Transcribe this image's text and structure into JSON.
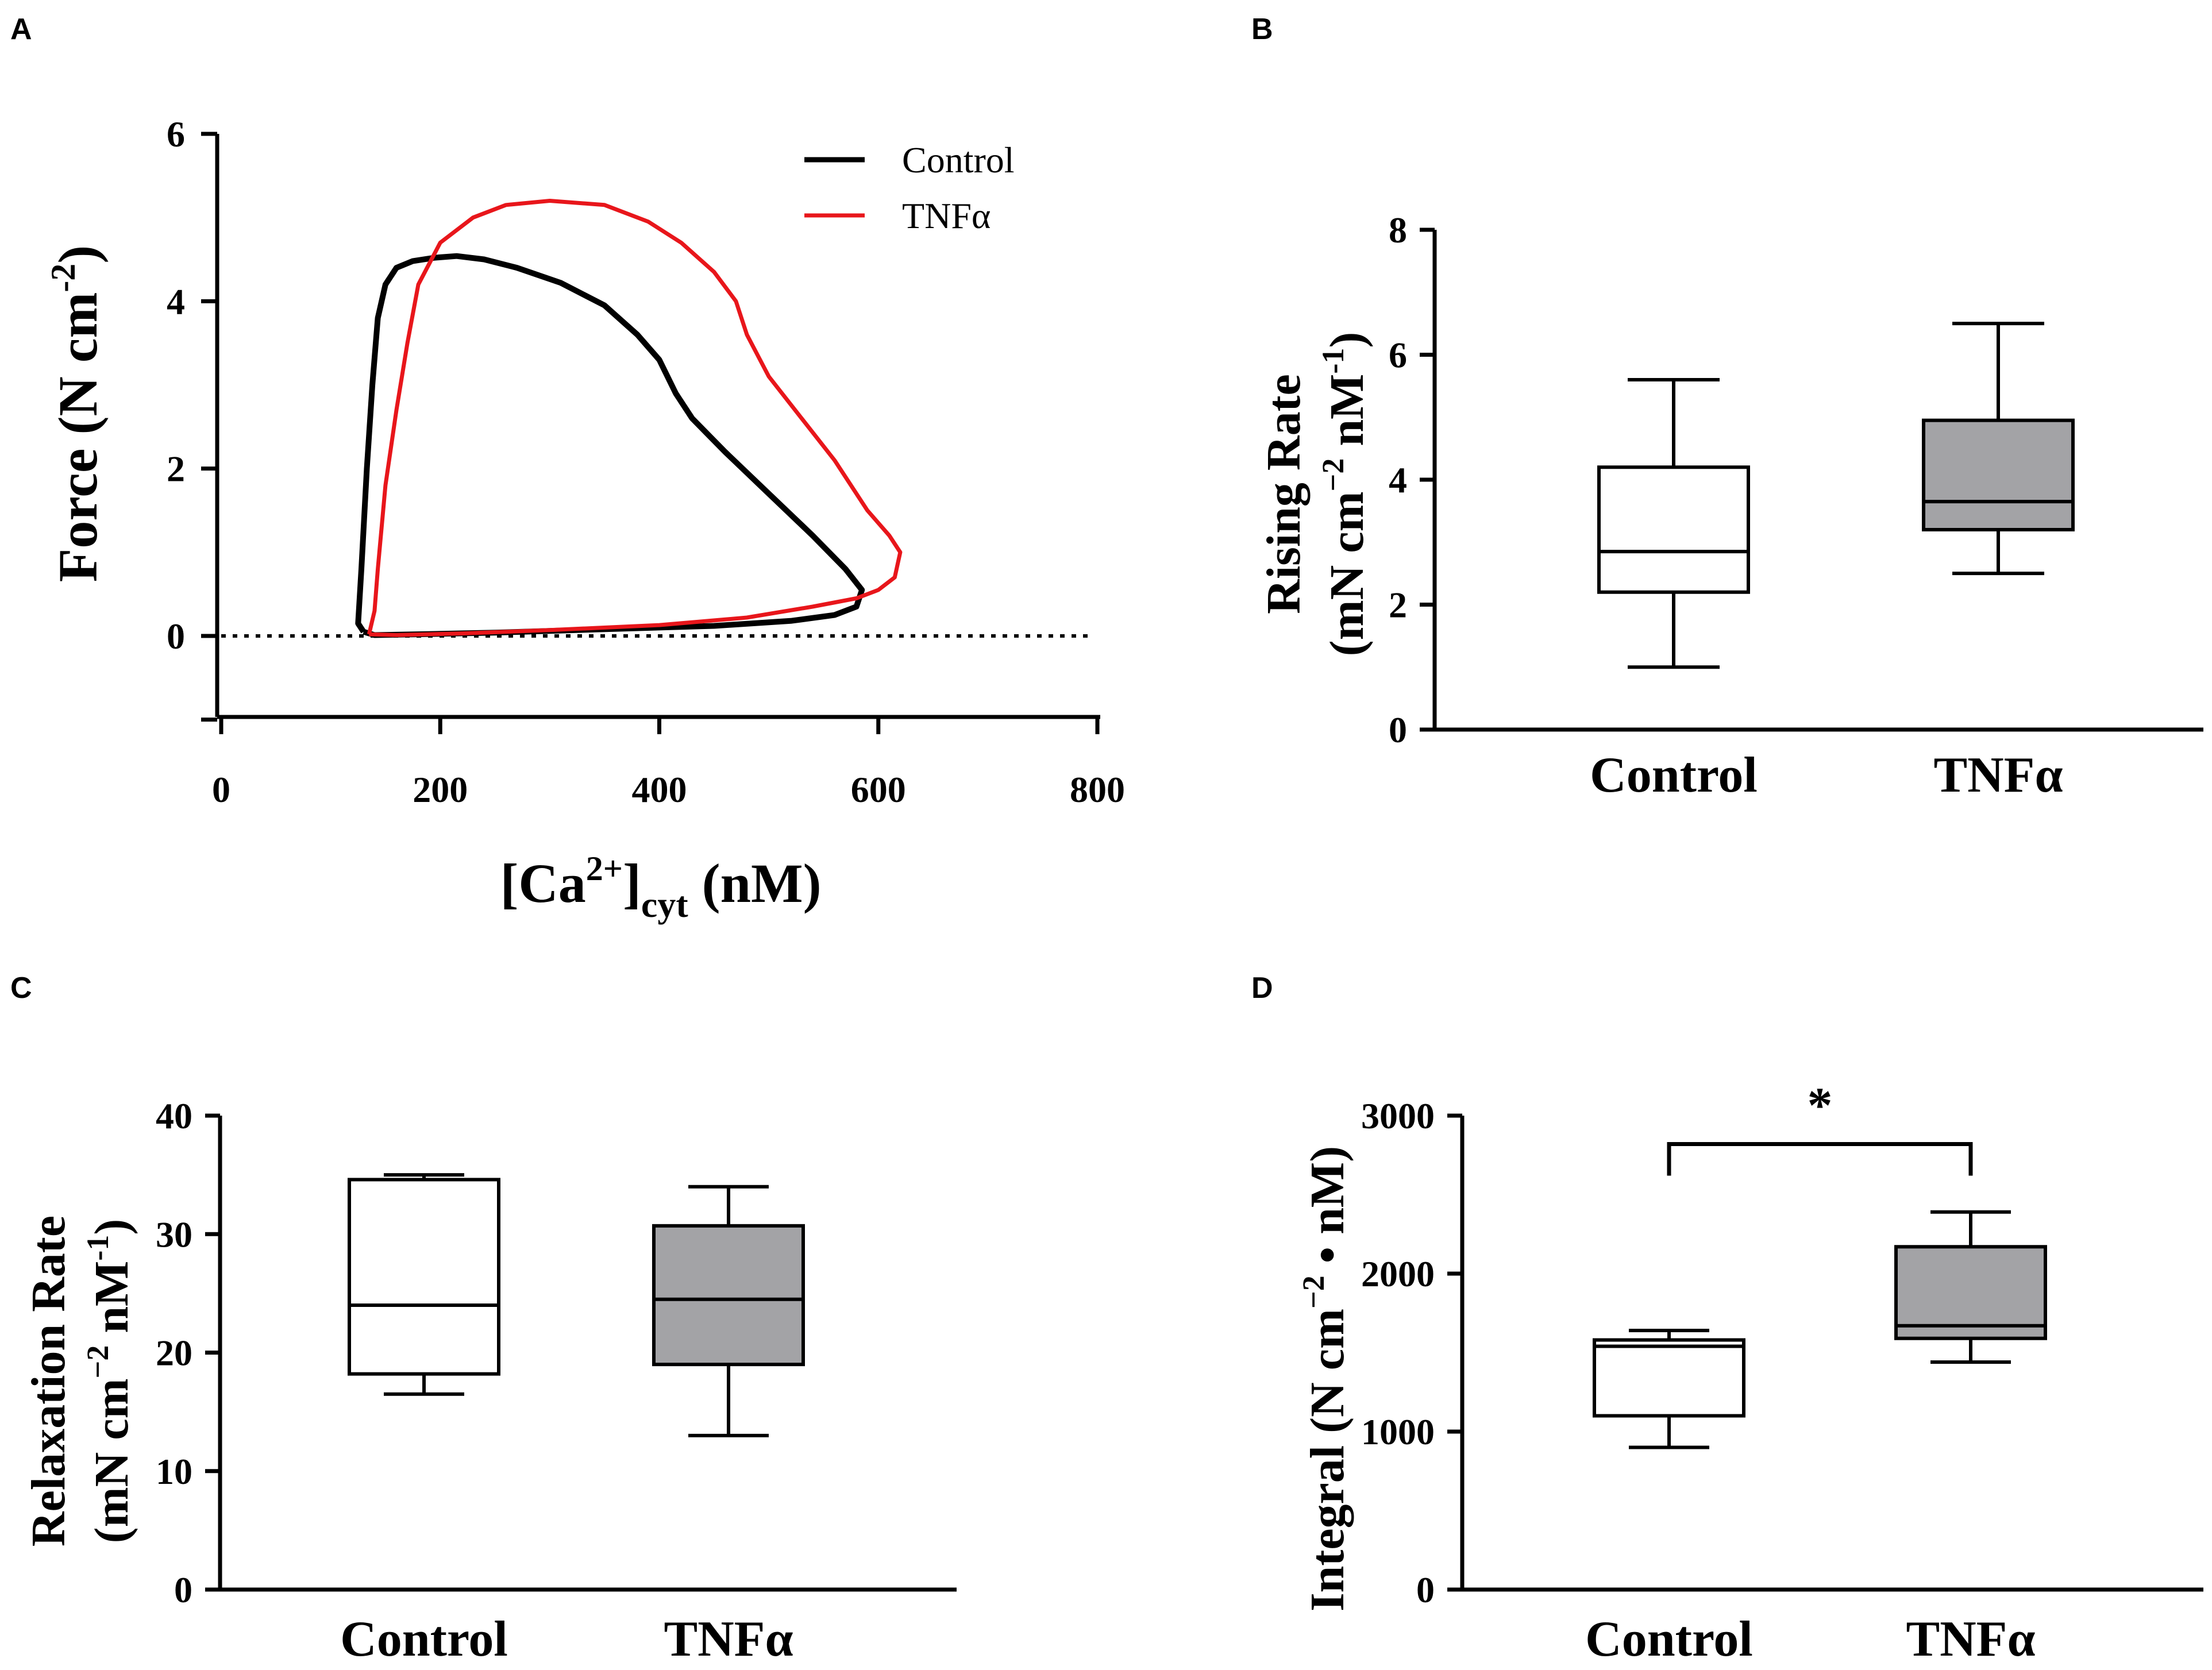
{
  "colors": {
    "control": "#000000",
    "tnf": "#e8161b",
    "tnf_box": "#a3a3a6",
    "control_box": "#ffffff"
  },
  "chart_data": [
    {
      "panel": "A",
      "type": "line",
      "xlabel_parts": {
        "base": "[Ca",
        "sup": "2+",
        "close": "]",
        "sub": "cyt",
        "unit": " (nM)"
      },
      "ylabel_parts": {
        "base": "Force (N cm",
        "sup": "-2",
        "close": ")"
      },
      "xlim": [
        0,
        800
      ],
      "ylim": [
        -1,
        6
      ],
      "xticks": [
        0,
        200,
        400,
        600,
        800
      ],
      "yticks": [
        0,
        2,
        4,
        6
      ],
      "reference_line_y": 0,
      "legend": [
        "Control",
        "TNFα"
      ],
      "series": [
        {
          "name": "Control",
          "x": [
            130,
            125,
            128,
            133,
            138,
            143,
            150,
            160,
            175,
            195,
            215,
            240,
            270,
            310,
            350,
            380,
            400,
            415,
            430,
            460,
            500,
            540,
            570,
            585,
            580,
            560,
            520,
            450,
            350,
            250,
            180,
            140,
            130
          ],
          "y": [
            0.05,
            0.15,
            0.8,
            2.0,
            3.0,
            3.8,
            4.2,
            4.4,
            4.48,
            4.52,
            4.54,
            4.5,
            4.4,
            4.22,
            3.95,
            3.6,
            3.3,
            2.9,
            2.6,
            2.2,
            1.7,
            1.2,
            0.8,
            0.55,
            0.35,
            0.25,
            0.18,
            0.12,
            0.08,
            0.04,
            0.02,
            0.01,
            0.05
          ]
        },
        {
          "name": "TNFα",
          "x": [
            135,
            140,
            143,
            150,
            160,
            170,
            180,
            200,
            230,
            260,
            300,
            350,
            390,
            420,
            450,
            470,
            480,
            500,
            530,
            560,
            590,
            610,
            620,
            615,
            600,
            580,
            540,
            480,
            400,
            300,
            220,
            160,
            135
          ],
          "y": [
            0.02,
            0.3,
            0.8,
            1.8,
            2.7,
            3.5,
            4.2,
            4.7,
            5.0,
            5.15,
            5.2,
            5.15,
            4.95,
            4.7,
            4.35,
            4.0,
            3.6,
            3.1,
            2.6,
            2.1,
            1.5,
            1.2,
            1.0,
            0.7,
            0.55,
            0.45,
            0.35,
            0.22,
            0.13,
            0.07,
            0.03,
            0.01,
            0.02
          ]
        }
      ]
    },
    {
      "panel": "B",
      "type": "box",
      "ylabel_line1": "Rising Rate",
      "ylabel_line2_parts": {
        "open": "(mN cm",
        "sup1": "−2",
        "mid": " nM",
        "sup2": "-1",
        "close": ")"
      },
      "ylim": [
        0,
        8
      ],
      "yticks": [
        0,
        2,
        4,
        6,
        8
      ],
      "categories": [
        "Control",
        "TNFα"
      ],
      "boxes": [
        {
          "name": "Control",
          "min": 1.0,
          "q1": 2.2,
          "median": 2.85,
          "q3": 4.2,
          "max": 5.6
        },
        {
          "name": "TNFα",
          "min": 2.5,
          "q1": 3.2,
          "median": 3.65,
          "q3": 4.95,
          "max": 6.5
        }
      ]
    },
    {
      "panel": "C",
      "type": "box",
      "ylabel_line1": "Relaxation Rate",
      "ylabel_line2_parts": {
        "open": "(mN cm",
        "sup1": "−2",
        "mid": " nM",
        "sup2": "-1",
        "close": ")"
      },
      "ylim": [
        0,
        40
      ],
      "yticks": [
        0,
        10,
        20,
        30,
        40
      ],
      "categories": [
        "Control",
        "TNFα"
      ],
      "boxes": [
        {
          "name": "Control",
          "min": 16.5,
          "q1": 18.2,
          "median": 24.0,
          "q3": 34.6,
          "max": 35.0
        },
        {
          "name": "TNFα",
          "min": 13.0,
          "q1": 19.0,
          "median": 24.5,
          "q3": 30.7,
          "max": 34.0
        }
      ]
    },
    {
      "panel": "D",
      "type": "box",
      "ylabel_parts": {
        "open": "Integral (N cm",
        "sup": "−2",
        "close": " • nM)"
      },
      "ylim": [
        0,
        3000
      ],
      "yticks": [
        0,
        1000,
        2000,
        3000
      ],
      "categories": [
        "Control",
        "TNFα"
      ],
      "significance": "*",
      "boxes": [
        {
          "name": "Control",
          "min": 900,
          "q1": 1100,
          "median": 1540,
          "q3": 1580,
          "max": 1640
        },
        {
          "name": "TNFα",
          "min": 1440,
          "q1": 1590,
          "median": 1670,
          "q3": 2170,
          "max": 2390
        }
      ]
    }
  ]
}
